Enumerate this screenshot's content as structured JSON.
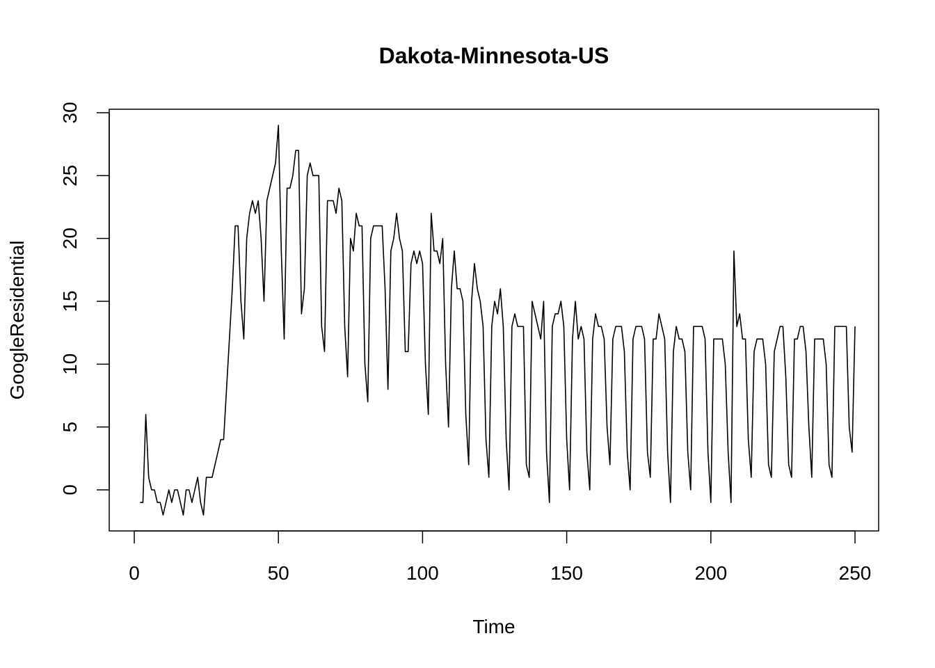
{
  "chart_data": {
    "type": "line",
    "title": "Dakota-Minnesota-US",
    "xlabel": "Time",
    "ylabel": "GoogleResidential",
    "xlim": [
      0,
      250
    ],
    "ylim": [
      -2,
      30
    ],
    "x_ticks": [
      0,
      50,
      100,
      150,
      200,
      250
    ],
    "y_ticks": [
      0,
      5,
      10,
      15,
      20,
      25,
      30
    ],
    "grid": false,
    "legend": "none",
    "line_color": "#000000",
    "series": [
      {
        "x_start": 2,
        "values": [
          -1,
          -1,
          6,
          1,
          0,
          0,
          -1,
          -1,
          -2,
          -1,
          0,
          -1,
          0,
          0,
          -1,
          -2,
          0,
          0,
          -1,
          0,
          1,
          -1,
          -2,
          1,
          1,
          1,
          2,
          3,
          4,
          4,
          8,
          12,
          16,
          21,
          21,
          15,
          12,
          20,
          22,
          23,
          22,
          23,
          20,
          15,
          23,
          24,
          25,
          26,
          29,
          19,
          12,
          24,
          24,
          25,
          27,
          27,
          14,
          16,
          25,
          26,
          25,
          25,
          25,
          13,
          11,
          23,
          23,
          23,
          22,
          24,
          23,
          13,
          9,
          20,
          19,
          22,
          21,
          21,
          10,
          7,
          20,
          21,
          21,
          21,
          21,
          16,
          8,
          19,
          20,
          22,
          20,
          19,
          11,
          11,
          18,
          19,
          18,
          19,
          18,
          10,
          6,
          22,
          19,
          19,
          18,
          20,
          10,
          5,
          16,
          19,
          16,
          16,
          15,
          6,
          2,
          15,
          18,
          16,
          15,
          13,
          4,
          1,
          13,
          15,
          14,
          16,
          13,
          4,
          0,
          13,
          14,
          13,
          13,
          13,
          2,
          1,
          15,
          14,
          13,
          12,
          15,
          3,
          -1,
          13,
          14,
          14,
          15,
          13,
          4,
          0,
          12,
          15,
          12,
          13,
          12,
          3,
          0,
          12,
          14,
          13,
          13,
          12,
          5,
          2,
          12,
          13,
          13,
          13,
          11,
          3,
          0,
          12,
          13,
          13,
          13,
          12,
          3,
          1,
          12,
          12,
          14,
          13,
          12,
          3,
          -1,
          11,
          13,
          12,
          12,
          11,
          3,
          0,
          13,
          13,
          13,
          13,
          12,
          3,
          -1,
          12,
          12,
          12,
          12,
          10,
          3,
          -1,
          19,
          13,
          14,
          12,
          12,
          4,
          1,
          11,
          12,
          12,
          12,
          10,
          2,
          1,
          11,
          12,
          13,
          13,
          9,
          2,
          1,
          12,
          12,
          13,
          13,
          11,
          5,
          1,
          12,
          12,
          12,
          12,
          10,
          2,
          1,
          13,
          13,
          13,
          13,
          13,
          5,
          3,
          13
        ]
      }
    ]
  }
}
